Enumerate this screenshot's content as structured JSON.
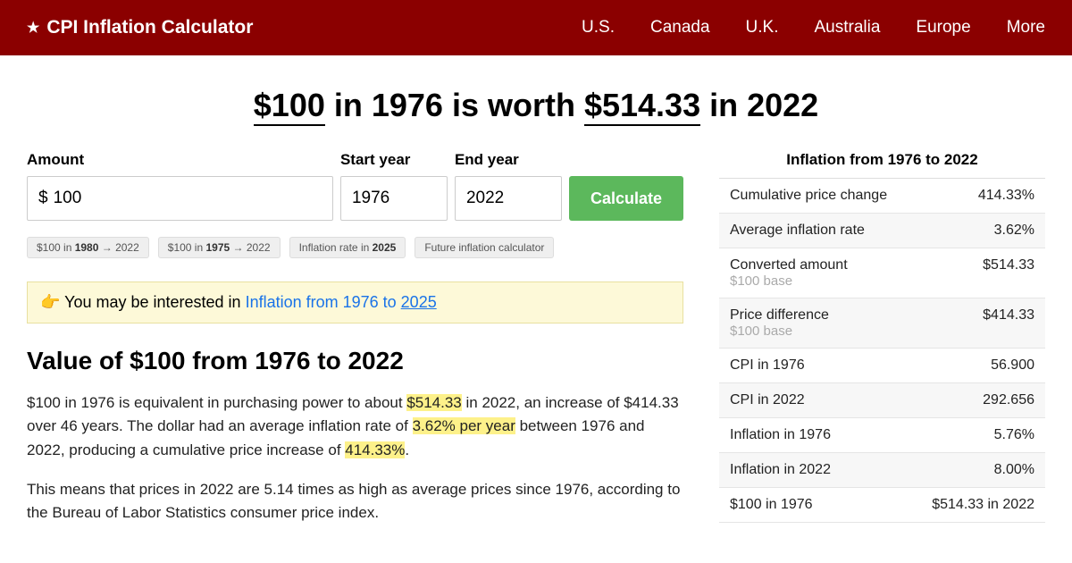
{
  "header": {
    "brand": "CPI Inflation Calculator",
    "nav": [
      "U.S.",
      "Canada",
      "U.K.",
      "Australia",
      "Europe",
      "More"
    ]
  },
  "title": {
    "amount": "$100",
    "mid1": " in 1976 is worth ",
    "result": "$514.33",
    "mid2": " in 2022"
  },
  "form": {
    "amount_label": "Amount",
    "currency": "$",
    "amount_value": "100",
    "start_label": "Start year",
    "start_value": "1976",
    "end_label": "End year",
    "end_value": "2022",
    "button": "Calculate"
  },
  "chips": [
    {
      "pre": "$100 in ",
      "bold": "1980",
      "post": " → 2022"
    },
    {
      "pre": "$100 in ",
      "bold": "1975",
      "post": " → 2022"
    },
    {
      "pre": "Inflation rate in ",
      "bold": "2025",
      "post": ""
    },
    {
      "pre": "Future inflation calculator",
      "bold": "",
      "post": ""
    }
  ],
  "interest": {
    "emoji": "👉",
    "text": " You may be interested in ",
    "link_text": "Inflation from 1976 to ",
    "link_year": "2025"
  },
  "section_title": "Value of $100 from 1976 to 2022",
  "para1": {
    "a": "$100 in 1976 is equivalent in purchasing power to about ",
    "h1": "$514.33",
    "b": " in 2022, an increase of $414.33 over 46 years. The dollar had an average inflation rate of ",
    "h2": "3.62% per year",
    "c": " between 1976 and 2022, producing a cumulative price increase of ",
    "h3": "414.33%",
    "d": "."
  },
  "para2": "This means that prices in 2022 are 5.14 times as high as average prices since 1976, according to the Bureau of Labor Statistics consumer price index.",
  "sidebar": {
    "title": "Inflation from 1976 to 2022",
    "rows": [
      {
        "label": "Cumulative price change",
        "sub": "",
        "value": "414.33%"
      },
      {
        "label": "Average inflation rate",
        "sub": "",
        "value": "3.62%"
      },
      {
        "label": "Converted amount",
        "sub": "$100 base",
        "value": "$514.33"
      },
      {
        "label": "Price difference",
        "sub": "$100 base",
        "value": "$414.33"
      },
      {
        "label": "CPI in 1976",
        "sub": "",
        "value": "56.900"
      },
      {
        "label": "CPI in 2022",
        "sub": "",
        "value": "292.656"
      },
      {
        "label": "Inflation in 1976",
        "sub": "",
        "value": "5.76%"
      },
      {
        "label": "Inflation in 2022",
        "sub": "",
        "value": "8.00%"
      },
      {
        "label": "$100 in 1976",
        "sub": "",
        "value": "$514.33 in 2022"
      }
    ]
  }
}
